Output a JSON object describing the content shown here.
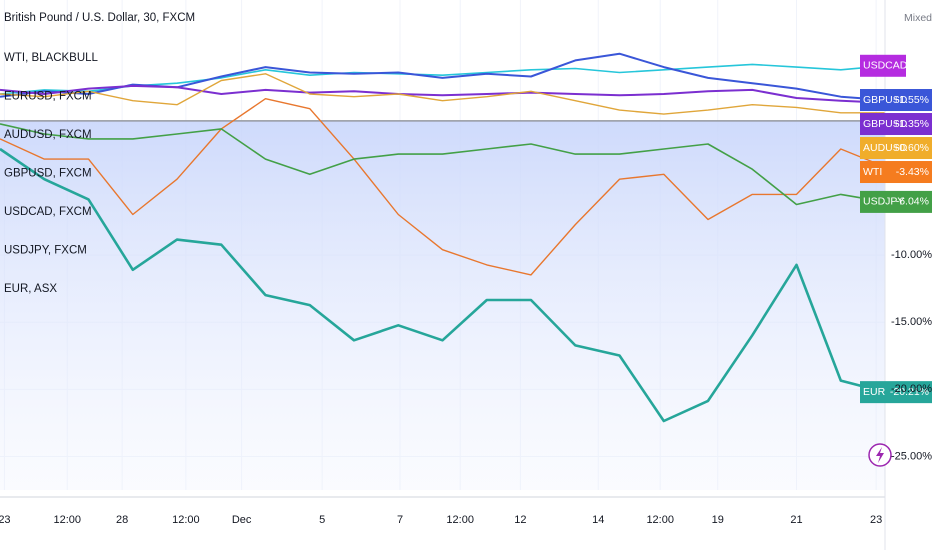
{
  "chart_data": {
    "type": "line",
    "title": "British Pound / U.S. Dollar, 30, FXCM",
    "legend_items": [
      "WTI, BLACKBULL",
      "EURUSD, FXCM",
      "AUDUSD, FXCM",
      "GBPUSD, FXCM",
      "USDCAD, FXCM",
      "USDJPY, FXCM",
      "EUR, ASX"
    ],
    "scale_mode": "Mixed",
    "x": [
      0,
      5,
      10,
      15,
      20,
      25,
      30,
      35,
      40,
      45,
      50,
      55,
      60,
      65,
      70,
      75,
      80,
      85,
      90,
      95,
      100
    ],
    "xlim": [
      0,
      100
    ],
    "xticks": [
      {
        "value": 0.5,
        "label": "23"
      },
      {
        "value": 7.6,
        "label": "12:00"
      },
      {
        "value": 13.8,
        "label": "28"
      },
      {
        "value": 21,
        "label": "12:00"
      },
      {
        "value": 27.3,
        "label": "Dec"
      },
      {
        "value": 36.4,
        "label": "5"
      },
      {
        "value": 45.2,
        "label": "7"
      },
      {
        "value": 52,
        "label": "12:00"
      },
      {
        "value": 58.8,
        "label": "12"
      },
      {
        "value": 67.6,
        "label": "14"
      },
      {
        "value": 74.6,
        "label": "12:00"
      },
      {
        "value": 81.1,
        "label": "19"
      },
      {
        "value": 90,
        "label": "21"
      },
      {
        "value": 99,
        "label": "23"
      }
    ],
    "ylim": [
      -27.5,
      9
    ],
    "yticks": [
      {
        "value": -10,
        "label": "-10.00%"
      },
      {
        "value": -15,
        "label": "-15.00%"
      },
      {
        "value": -20,
        "label": "-20.00%"
      },
      {
        "value": -25,
        "label": "-25.00%"
      }
    ],
    "grid": true,
    "series": [
      {
        "name": "USDCAD",
        "color": "#26c6da",
        "label_color": "#b52ce0",
        "width": 1.6,
        "values": [
          2.0,
          2.3,
          2.2,
          2.6,
          2.8,
          3.2,
          3.8,
          3.4,
          3.6,
          3.5,
          3.4,
          3.6,
          3.8,
          3.9,
          3.6,
          3.8,
          4.0,
          4.2,
          4.0,
          3.8,
          4.1
        ]
      },
      {
        "name": "GBPUSD",
        "color": "#3a56d8",
        "label_color": "#3a56d8",
        "width": 2,
        "last_label": "+1.55%",
        "values": [
          1.8,
          2.2,
          2.0,
          2.7,
          2.5,
          3.3,
          4.0,
          3.6,
          3.5,
          3.6,
          3.2,
          3.5,
          3.3,
          4.5,
          5.0,
          4.0,
          3.2,
          2.8,
          2.4,
          1.8,
          1.55
        ]
      },
      {
        "name": "GBPUSD",
        "color": "#7b2fd0",
        "label_color": "#7b2fd0",
        "width": 2,
        "last_label": "+1.35%",
        "values": [
          2.3,
          2.0,
          2.4,
          2.6,
          2.5,
          2.0,
          2.3,
          2.1,
          2.2,
          2.0,
          1.9,
          2.0,
          2.1,
          2.0,
          1.9,
          2.0,
          2.2,
          2.3,
          1.7,
          1.5,
          1.35
        ]
      },
      {
        "name": "AUDUSD",
        "color": "#e0a63a",
        "label_color": "#f0ad2b",
        "width": 1.4,
        "last_label": "+0.60%",
        "values": [
          2.0,
          1.8,
          2.2,
          1.5,
          1.2,
          3.0,
          3.5,
          2.0,
          1.8,
          2.0,
          1.5,
          1.8,
          2.2,
          1.5,
          0.8,
          0.5,
          0.8,
          1.2,
          1.0,
          0.6,
          0.6
        ]
      },
      {
        "name": "WTI",
        "color": "#e8772e",
        "label_color": "#f57c1f",
        "width": 1.4,
        "last_label": "-3.43%",
        "values": [
          -1.35,
          -2.85,
          -2.85,
          -6.98,
          -4.35,
          -0.6,
          1.65,
          0.9,
          -2.85,
          -6.98,
          -9.6,
          -10.73,
          -11.48,
          -7.73,
          -4.35,
          -3.98,
          -7.35,
          -5.48,
          -5.48,
          -2.1,
          -3.43
        ]
      },
      {
        "name": "USDJPY",
        "color": "#43a047",
        "label_color": "#43a047",
        "width": 1.6,
        "last_label": "-6.04%",
        "values": [
          -0.23,
          -0.98,
          -1.35,
          -1.35,
          -0.98,
          -0.6,
          -2.85,
          -3.98,
          -2.85,
          -2.48,
          -2.48,
          -2.1,
          -1.73,
          -2.48,
          -2.48,
          -2.1,
          -1.73,
          -3.6,
          -6.23,
          -5.48,
          -6.04
        ]
      },
      {
        "name": "EUR",
        "color": "#26a69a",
        "label_color": "#26a69a",
        "width": 2.6,
        "last_label": "-20.21%",
        "values": [
          -2.1,
          -4.35,
          -5.85,
          -11.1,
          -8.85,
          -9.23,
          -12.98,
          -13.73,
          -16.35,
          -15.23,
          -16.35,
          -13.35,
          -13.35,
          -16.73,
          -17.48,
          -22.36,
          -20.86,
          -15.98,
          -10.73,
          -19.35,
          -20.21
        ]
      }
    ]
  }
}
